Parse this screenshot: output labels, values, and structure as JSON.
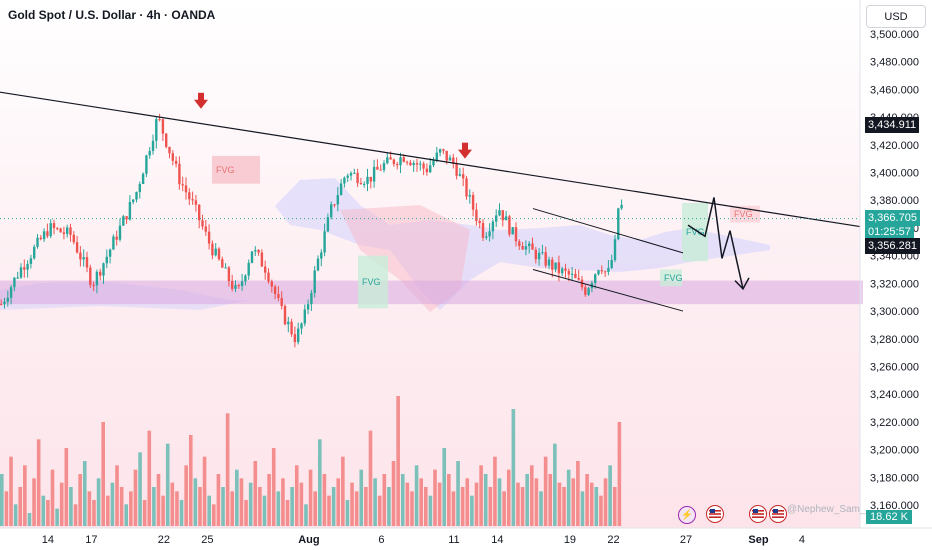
{
  "header": {
    "title": "Gold Spot / U.S. Dollar · 4h · OANDA",
    "currency_button": "USD"
  },
  "price_tags": {
    "tag_top": "3,434.911",
    "current_price": "3,366.705",
    "countdown": "01:25:57",
    "tag_bottom": "3,356.281"
  },
  "volume_badge": "18.62 K",
  "watermark": "@Nephew_Sam_",
  "annotations": {
    "fvg_label": "FVG"
  },
  "colors": {
    "up": "#26a69a",
    "down": "#ef5350",
    "background_top": "#ffffff",
    "background_bottom": "#fde4ea",
    "zone": "#d9a7e0",
    "cloud": "#c9c9ff",
    "arrow_marker": "#d32f2f",
    "tag_dark": "#131722"
  },
  "chart_data": {
    "type": "candlestick",
    "symbol": "Gold Spot / U.S. Dollar",
    "interval": "4h",
    "source": "OANDA",
    "currency": "USD",
    "ylim": [
      3150,
      3510
    ],
    "y_ticks": [
      "3,500.000",
      "3,480.000",
      "3,460.000",
      "3,440.000",
      "3,420.000",
      "3,400.000",
      "3,380.000",
      "3,360.000",
      "3,340.000",
      "3,320.000",
      "3,300.000",
      "3,280.000",
      "3,260.000",
      "3,240.000",
      "3,220.000",
      "3,200.000",
      "3,180.000",
      "3,160.000"
    ],
    "x_ticks": [
      "14",
      "17",
      "22",
      "25",
      "Aug",
      "6",
      "11",
      "14",
      "19",
      "22",
      "27",
      "Sep",
      "4"
    ],
    "x_tick_days": [
      14,
      17,
      22,
      25,
      32,
      37,
      42,
      45,
      50,
      53,
      58,
      63,
      66
    ],
    "x_day_range": [
      10.7,
      70
    ],
    "price_path_days": [
      10.7,
      12,
      14,
      15.5,
      17,
      18,
      20,
      21.5,
      22,
      23,
      24,
      25,
      26,
      27,
      28,
      29,
      30,
      31,
      31.6,
      32.5,
      33.5,
      34.5,
      36,
      37,
      38.5,
      40,
      41,
      42,
      43,
      44,
      45,
      46,
      47,
      48,
      49,
      50,
      51,
      52,
      52.5,
      53,
      53.3,
      53.6
    ],
    "price_path": [
      3305,
      3330,
      3360,
      3355,
      3320,
      3340,
      3385,
      3440,
      3425,
      3395,
      3375,
      3350,
      3330,
      3312,
      3345,
      3330,
      3300,
      3280,
      3295,
      3335,
      3375,
      3400,
      3395,
      3405,
      3412,
      3402,
      3415,
      3405,
      3380,
      3355,
      3375,
      3355,
      3345,
      3338,
      3330,
      3325,
      3315,
      3335,
      3325,
      3345,
      3380,
      3372
    ],
    "volumes": [
      12,
      8,
      16,
      5,
      9,
      14,
      3,
      11,
      20,
      7,
      6,
      13,
      4,
      10,
      18,
      9,
      5,
      12,
      15,
      8,
      6,
      11,
      24,
      7,
      10,
      14,
      9,
      5,
      8,
      13,
      17,
      6,
      22,
      9,
      12,
      7,
      19,
      10,
      8,
      6,
      14,
      21,
      11,
      9,
      16,
      7,
      5,
      12,
      9,
      26,
      8,
      13,
      11,
      6,
      10,
      15,
      9,
      7,
      12,
      18,
      8,
      11,
      6,
      9,
      14,
      10,
      5,
      13,
      8,
      20,
      12,
      7,
      9,
      11,
      16,
      6,
      10,
      8,
      13,
      9,
      22,
      11,
      7,
      12,
      9,
      15,
      30,
      12,
      10,
      8,
      14,
      11,
      9,
      7,
      13,
      10,
      18,
      12,
      8,
      15,
      9,
      11,
      7,
      10,
      14,
      12,
      9,
      16,
      11,
      8,
      13,
      27,
      10,
      9,
      12,
      14,
      11,
      8,
      16,
      12,
      19,
      10,
      9,
      13,
      11,
      15,
      8,
      12,
      10,
      9,
      7,
      11,
      14,
      9,
      24
    ]
  }
}
